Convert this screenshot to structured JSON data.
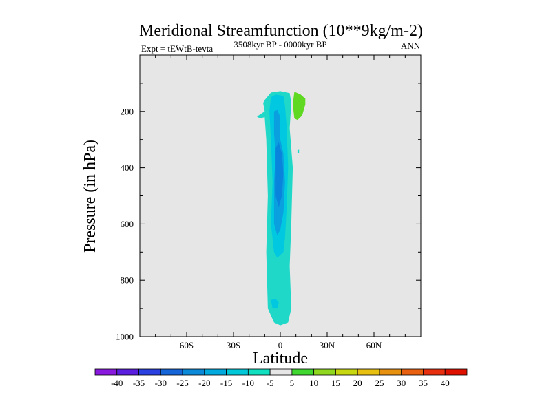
{
  "chart_data": {
    "type": "heatmap",
    "title": "Meridional Streamfunction (10**9kg/m-2)",
    "left_label": "Expt = tEWtB-tevta",
    "center_label": "3508kyr BP - 0000kyr BP",
    "right_label": "ANN",
    "xlabel": "Latitude",
    "ylabel": "Pressure (in hPa)",
    "xlim": [
      -90,
      90
    ],
    "ylim": [
      0,
      1000
    ],
    "y_inverted": true,
    "x_ticks": [
      {
        "value": -60,
        "label": "60S"
      },
      {
        "value": -30,
        "label": "30S"
      },
      {
        "value": 0,
        "label": "0"
      },
      {
        "value": 30,
        "label": "30N"
      },
      {
        "value": 60,
        "label": "60N"
      }
    ],
    "y_ticks": [
      {
        "value": 200,
        "label": "200"
      },
      {
        "value": 400,
        "label": "400"
      },
      {
        "value": 600,
        "label": "600"
      },
      {
        "value": 800,
        "label": "800"
      },
      {
        "value": 1000,
        "label": "1000"
      }
    ],
    "background_color": "#e6e6e6",
    "colorbar": {
      "levels": [
        "-40",
        "-35",
        "-30",
        "-25",
        "-20",
        "-15",
        "-10",
        "-5",
        "5",
        "10",
        "15",
        "20",
        "25",
        "30",
        "35",
        "40"
      ],
      "colors": [
        "#8a19e0",
        "#5a1ee0",
        "#2a40e0",
        "#1565d8",
        "#0a8ad8",
        "#00aade",
        "#00c8d8",
        "#10e0c0",
        "#e6e6e6",
        "#40d830",
        "#90d820",
        "#c8d810",
        "#e8c010",
        "#e89010",
        "#e86010",
        "#e83010",
        "#e01000"
      ]
    },
    "regions": [
      {
        "name": "weak-negative-cell",
        "value_range": "-10 to -5",
        "color": "#20d8c8",
        "polygon": [
          [
            -10,
            160
          ],
          [
            -6,
            133
          ],
          [
            0,
            128
          ],
          [
            6,
            135
          ],
          [
            7,
            170
          ],
          [
            6,
            260
          ],
          [
            8,
            400
          ],
          [
            7,
            600
          ],
          [
            6,
            750
          ],
          [
            7,
            900
          ],
          [
            5,
            950
          ],
          [
            0,
            960
          ],
          [
            -4,
            950
          ],
          [
            -8,
            900
          ],
          [
            -9,
            700
          ],
          [
            -8,
            500
          ],
          [
            -9,
            300
          ],
          [
            -10,
            220
          ],
          [
            -13,
            225
          ],
          [
            -15,
            218
          ],
          [
            -10,
            200
          ],
          [
            -11,
            170
          ]
        ]
      },
      {
        "name": "moderate-negative-cell",
        "value_range": "-15 to -10",
        "color": "#00c8e0",
        "polygon": [
          [
            -6,
            150
          ],
          [
            -3,
            140
          ],
          [
            2,
            145
          ],
          [
            3,
            180
          ],
          [
            4,
            250
          ],
          [
            5,
            400
          ],
          [
            4,
            550
          ],
          [
            3,
            650
          ],
          [
            2,
            700
          ],
          [
            -2,
            720
          ],
          [
            -4,
            700
          ],
          [
            -6,
            600
          ],
          [
            -5,
            450
          ],
          [
            -6,
            300
          ],
          [
            -7,
            200
          ]
        ]
      },
      {
        "name": "lower-negative-cell",
        "value_range": "-15 to -10",
        "color": "#00c8e0",
        "polygon": [
          [
            -6,
            870
          ],
          [
            -3,
            865
          ],
          [
            -1,
            880
          ],
          [
            -2,
            900
          ],
          [
            -5,
            900
          ]
        ]
      },
      {
        "name": "strong-negative-cell",
        "value_range": "-20 to -15",
        "color": "#0aa0e0",
        "polygon": [
          [
            -4,
            200
          ],
          [
            -2,
            195
          ],
          [
            0,
            220
          ],
          [
            0,
            300
          ],
          [
            2,
            350
          ],
          [
            3,
            450
          ],
          [
            2,
            560
          ],
          [
            0,
            620
          ],
          [
            -2,
            640
          ],
          [
            -4,
            600
          ],
          [
            -4,
            450
          ],
          [
            -3,
            350
          ],
          [
            -4,
            280
          ]
        ]
      },
      {
        "name": "core-negative-cell",
        "value_range": "-25 to -20",
        "color": "#0884dc",
        "polygon": [
          [
            -3,
            330
          ],
          [
            -1,
            310
          ],
          [
            1,
            350
          ],
          [
            2,
            420
          ],
          [
            1,
            500
          ],
          [
            -1,
            540
          ],
          [
            -3,
            500
          ],
          [
            -3,
            420
          ]
        ]
      },
      {
        "name": "positive-cell",
        "value_range": "5 to 10",
        "color": "#5ed820",
        "polygon": [
          [
            9,
            130
          ],
          [
            13,
            140
          ],
          [
            16,
            155
          ],
          [
            16,
            175
          ],
          [
            14,
            215
          ],
          [
            11,
            230
          ],
          [
            9,
            225
          ],
          [
            8,
            175
          ]
        ]
      },
      {
        "name": "positive-speck",
        "value_range": "-10 to -5",
        "color": "#20d8c8",
        "polygon": [
          [
            11,
            338
          ],
          [
            12,
            336
          ],
          [
            12,
            348
          ],
          [
            11,
            348
          ]
        ]
      }
    ]
  }
}
